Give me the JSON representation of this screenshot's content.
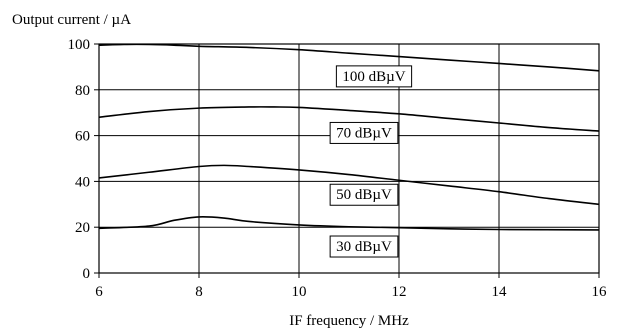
{
  "chart_data": {
    "type": "line",
    "ylabel": "Output current / µA",
    "xlabel": "IF frequency / MHz",
    "xlim": [
      6,
      16
    ],
    "ylim": [
      0,
      100
    ],
    "xticks": [
      "6",
      "8",
      "10",
      "12",
      "14",
      "16"
    ],
    "yticks": [
      "0",
      "20",
      "40",
      "60",
      "80",
      "100"
    ],
    "grid": true,
    "series": [
      {
        "name": "100 dBµV",
        "x": [
          6,
          6.5,
          7,
          7.5,
          8,
          9,
          10,
          11,
          12,
          13,
          14,
          15,
          16
        ],
        "y": [
          99.5,
          99.8,
          99.8,
          99.5,
          99.0,
          98.5,
          97.5,
          96.0,
          94.5,
          93.0,
          91.5,
          90.0,
          88.3
        ]
      },
      {
        "name": "70 dBµV",
        "x": [
          6,
          7,
          8,
          9,
          9.5,
          10,
          11,
          12,
          13,
          14,
          15,
          16
        ],
        "y": [
          68.0,
          70.5,
          72.0,
          72.5,
          72.5,
          72.3,
          71.0,
          69.5,
          67.5,
          65.5,
          63.5,
          62.0
        ]
      },
      {
        "name": "50 dBµV",
        "x": [
          6,
          7,
          8,
          8.5,
          9,
          10,
          11,
          12,
          13,
          14,
          15,
          16
        ],
        "y": [
          41.5,
          44.0,
          46.5,
          47.0,
          46.5,
          45.0,
          43.0,
          40.5,
          38.0,
          35.5,
          32.5,
          30.0
        ]
      },
      {
        "name": "30 dBµV",
        "x": [
          6,
          7,
          7.5,
          8,
          8.5,
          9,
          10,
          11,
          12,
          13,
          14,
          16
        ],
        "y": [
          19.5,
          20.5,
          23.0,
          24.5,
          24.0,
          22.5,
          21.0,
          20.2,
          19.8,
          19.3,
          19.0,
          18.8
        ]
      }
    ]
  }
}
